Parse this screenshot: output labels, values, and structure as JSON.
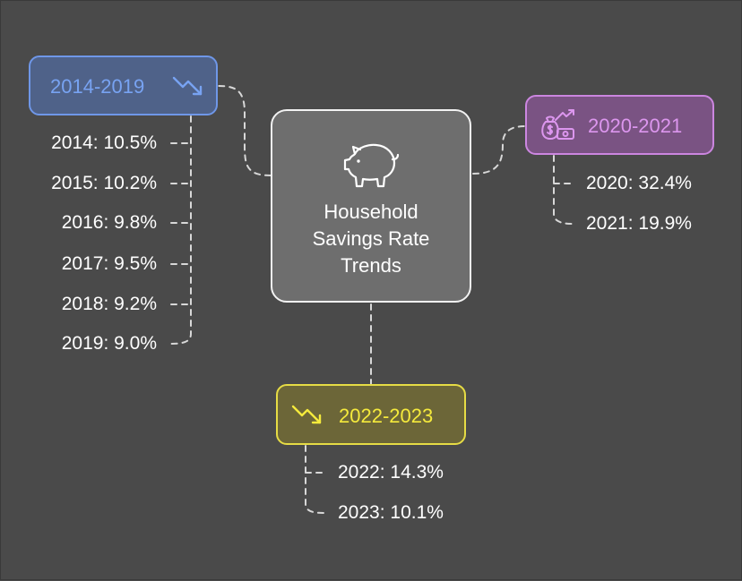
{
  "center": {
    "title_lines": [
      "Household",
      "Savings Rate",
      "Trends"
    ],
    "icon": "piggy-bank-icon"
  },
  "groups": [
    {
      "label": "2014-2019",
      "icon": "trend-down-icon",
      "color": "#78a3f2",
      "items": [
        "2014: 10.5%",
        "2015: 10.2%",
        "2016: 9.8%",
        "2017: 9.5%",
        "2018: 9.2%",
        "2019: 9.0%"
      ]
    },
    {
      "label": "2020-2021",
      "icon": "money-growth-icon",
      "color": "#dc96ee",
      "items": [
        "2020: 32.4%",
        "2021: 19.9%"
      ]
    },
    {
      "label": "2022-2023",
      "icon": "trend-down-icon",
      "color": "#f5ea3c",
      "items": [
        "2022: 14.3%",
        "2023: 10.1%"
      ]
    }
  ]
}
